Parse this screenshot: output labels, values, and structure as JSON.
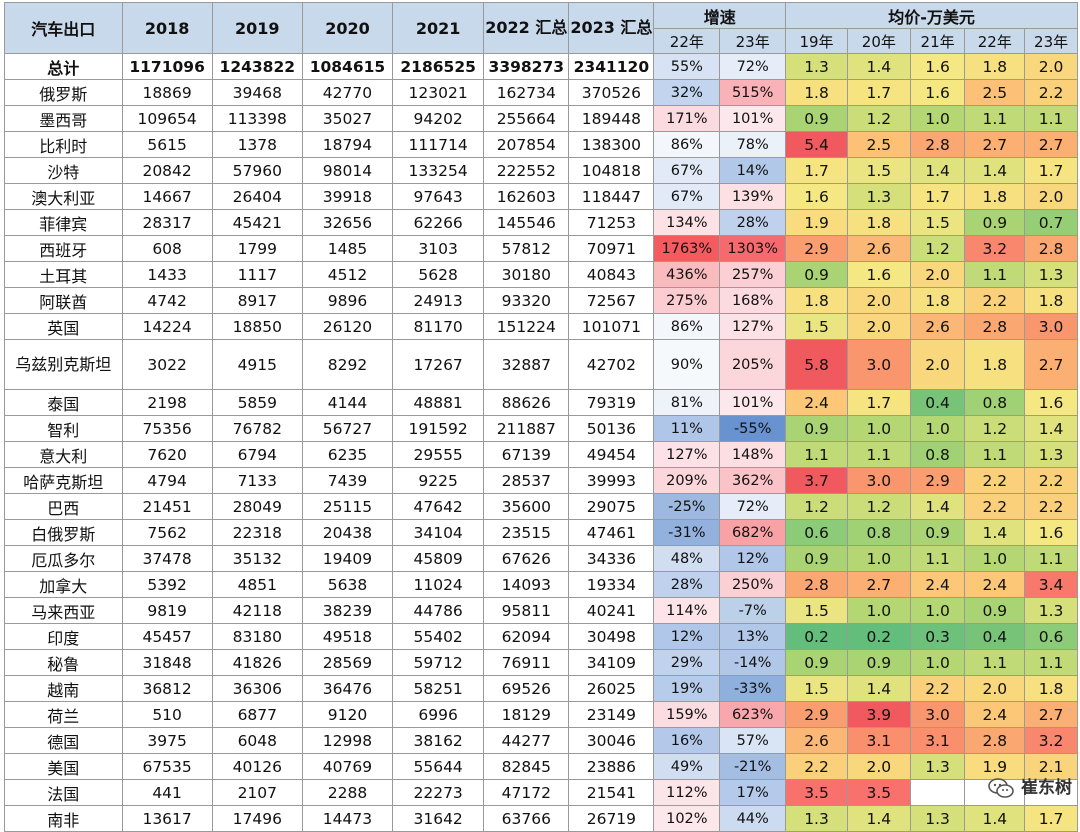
{
  "headers": {
    "country": "汽车出口",
    "years": [
      "2018",
      "2019",
      "2020",
      "2021",
      "2022 汇总",
      "2023 汇总"
    ],
    "growth": "增速",
    "growth_sub": [
      "22年",
      "23年"
    ],
    "price": "均价-万美元",
    "price_sub": [
      "19年",
      "20年",
      "21年",
      "22年",
      "23年"
    ]
  },
  "rows": [
    {
      "name": "总计",
      "vals": [
        "1171096",
        "1243822",
        "1084615",
        "2186525",
        "3398273",
        "2341120"
      ],
      "g": [
        "55%",
        "72%"
      ],
      "p": [
        "1.3",
        "1.4",
        "1.6",
        "1.8",
        "2.0"
      ]
    },
    {
      "name": "俄罗斯",
      "vals": [
        "18869",
        "39468",
        "42770",
        "123021",
        "162734",
        "370526"
      ],
      "g": [
        "32%",
        "515%"
      ],
      "p": [
        "1.8",
        "1.7",
        "1.6",
        "2.5",
        "2.2"
      ]
    },
    {
      "name": "墨西哥",
      "vals": [
        "109654",
        "113398",
        "35027",
        "94202",
        "255664",
        "189448"
      ],
      "g": [
        "171%",
        "101%"
      ],
      "p": [
        "0.9",
        "1.2",
        "1.0",
        "1.1",
        "1.1"
      ]
    },
    {
      "name": "比利时",
      "vals": [
        "5615",
        "1378",
        "18794",
        "111714",
        "207854",
        "138300"
      ],
      "g": [
        "86%",
        "78%"
      ],
      "p": [
        "5.4",
        "2.5",
        "2.8",
        "2.7",
        "2.7"
      ]
    },
    {
      "name": "沙特",
      "vals": [
        "20842",
        "57960",
        "98014",
        "133254",
        "222552",
        "104818"
      ],
      "g": [
        "67%",
        "14%"
      ],
      "p": [
        "1.7",
        "1.5",
        "1.4",
        "1.4",
        "1.7"
      ]
    },
    {
      "name": "澳大利亚",
      "vals": [
        "14667",
        "26404",
        "39918",
        "97643",
        "162603",
        "118447"
      ],
      "g": [
        "67%",
        "139%"
      ],
      "p": [
        "1.6",
        "1.3",
        "1.7",
        "1.8",
        "2.0"
      ]
    },
    {
      "name": "菲律宾",
      "vals": [
        "28317",
        "45421",
        "32656",
        "62266",
        "145546",
        "71253"
      ],
      "g": [
        "134%",
        "28%"
      ],
      "p": [
        "1.9",
        "1.8",
        "1.5",
        "0.9",
        "0.7"
      ]
    },
    {
      "name": "西班牙",
      "vals": [
        "608",
        "1799",
        "1485",
        "3103",
        "57812",
        "70971"
      ],
      "g": [
        "1763%",
        "1303%"
      ],
      "p": [
        "2.9",
        "2.6",
        "1.2",
        "3.2",
        "2.8"
      ]
    },
    {
      "name": "土耳其",
      "vals": [
        "1433",
        "1117",
        "4512",
        "5628",
        "30180",
        "40843"
      ],
      "g": [
        "436%",
        "257%"
      ],
      "p": [
        "0.9",
        "1.6",
        "2.0",
        "1.1",
        "1.3"
      ]
    },
    {
      "name": "阿联酋",
      "vals": [
        "4742",
        "8917",
        "9896",
        "24913",
        "93320",
        "72567"
      ],
      "g": [
        "275%",
        "168%"
      ],
      "p": [
        "1.8",
        "2.0",
        "1.8",
        "2.2",
        "1.8"
      ]
    },
    {
      "name": "英国",
      "vals": [
        "14224",
        "18850",
        "26120",
        "81170",
        "151224",
        "101071"
      ],
      "g": [
        "86%",
        "127%"
      ],
      "p": [
        "1.5",
        "2.0",
        "2.6",
        "2.8",
        "3.0"
      ]
    },
    {
      "name": "乌兹别克斯坦",
      "vals": [
        "3022",
        "4915",
        "8292",
        "17267",
        "32887",
        "42702"
      ],
      "g": [
        "90%",
        "205%"
      ],
      "p": [
        "5.8",
        "3.0",
        "2.0",
        "1.8",
        "2.7"
      ]
    },
    {
      "name": "泰国",
      "vals": [
        "2198",
        "5859",
        "4144",
        "48881",
        "88626",
        "79319"
      ],
      "g": [
        "81%",
        "101%"
      ],
      "p": [
        "2.4",
        "1.7",
        "0.4",
        "0.8",
        "1.6"
      ]
    },
    {
      "name": "智利",
      "vals": [
        "75356",
        "76782",
        "56727",
        "191592",
        "211887",
        "50136"
      ],
      "g": [
        "11%",
        "-55%"
      ],
      "p": [
        "0.9",
        "1.0",
        "1.0",
        "1.2",
        "1.4"
      ]
    },
    {
      "name": "意大利",
      "vals": [
        "7620",
        "6794",
        "6235",
        "29555",
        "67139",
        "49454"
      ],
      "g": [
        "127%",
        "148%"
      ],
      "p": [
        "1.1",
        "1.1",
        "0.8",
        "1.1",
        "1.3"
      ]
    },
    {
      "name": "哈萨克斯坦",
      "vals": [
        "4794",
        "7133",
        "7439",
        "9225",
        "28537",
        "39993"
      ],
      "g": [
        "209%",
        "362%"
      ],
      "p": [
        "3.7",
        "3.0",
        "2.9",
        "2.2",
        "2.2"
      ]
    },
    {
      "name": "巴西",
      "vals": [
        "21451",
        "28049",
        "25115",
        "47642",
        "35600",
        "29075"
      ],
      "g": [
        "-25%",
        "72%"
      ],
      "p": [
        "1.2",
        "1.2",
        "1.4",
        "2.2",
        "2.2"
      ]
    },
    {
      "name": "白俄罗斯",
      "vals": [
        "7562",
        "22318",
        "20438",
        "34104",
        "23515",
        "47461"
      ],
      "g": [
        "-31%",
        "682%"
      ],
      "p": [
        "0.6",
        "0.8",
        "0.9",
        "1.4",
        "1.6"
      ]
    },
    {
      "name": "厄瓜多尔",
      "vals": [
        "37478",
        "35132",
        "19409",
        "45809",
        "67626",
        "34336"
      ],
      "g": [
        "48%",
        "12%"
      ],
      "p": [
        "0.9",
        "1.0",
        "1.1",
        "1.0",
        "1.1"
      ]
    },
    {
      "name": "加拿大",
      "vals": [
        "5392",
        "4851",
        "5638",
        "11024",
        "14093",
        "19334"
      ],
      "g": [
        "28%",
        "250%"
      ],
      "p": [
        "2.8",
        "2.7",
        "2.4",
        "2.4",
        "3.4"
      ]
    },
    {
      "name": "马来西亚",
      "vals": [
        "9819",
        "42118",
        "38239",
        "44786",
        "95811",
        "40241"
      ],
      "g": [
        "114%",
        "-7%"
      ],
      "p": [
        "1.5",
        "1.0",
        "1.0",
        "0.9",
        "1.3"
      ]
    },
    {
      "name": "印度",
      "vals": [
        "45457",
        "83180",
        "49518",
        "55402",
        "62094",
        "30498"
      ],
      "g": [
        "12%",
        "13%"
      ],
      "p": [
        "0.2",
        "0.2",
        "0.3",
        "0.4",
        "0.6"
      ]
    },
    {
      "name": "秘鲁",
      "vals": [
        "31848",
        "41826",
        "28569",
        "59712",
        "76911",
        "34109"
      ],
      "g": [
        "29%",
        "-14%"
      ],
      "p": [
        "0.9",
        "0.9",
        "1.0",
        "1.1",
        "1.1"
      ]
    },
    {
      "name": "越南",
      "vals": [
        "36812",
        "36306",
        "36476",
        "58251",
        "69526",
        "26025"
      ],
      "g": [
        "19%",
        "-33%"
      ],
      "p": [
        "1.5",
        "1.4",
        "2.2",
        "2.0",
        "1.8"
      ]
    },
    {
      "name": "荷兰",
      "vals": [
        "510",
        "6877",
        "9120",
        "6996",
        "18129",
        "23149"
      ],
      "g": [
        "159%",
        "623%"
      ],
      "p": [
        "2.9",
        "3.9",
        "3.0",
        "2.4",
        "2.7"
      ]
    },
    {
      "name": "德国",
      "vals": [
        "3975",
        "6048",
        "12998",
        "38162",
        "44277",
        "30046"
      ],
      "g": [
        "16%",
        "57%"
      ],
      "p": [
        "2.6",
        "3.1",
        "3.1",
        "2.8",
        "3.2"
      ]
    },
    {
      "name": "美国",
      "vals": [
        "67535",
        "40126",
        "40769",
        "55644",
        "82845",
        "23886"
      ],
      "g": [
        "49%",
        "-21%"
      ],
      "p": [
        "2.2",
        "2.0",
        "1.3",
        "1.9",
        "2.1"
      ]
    },
    {
      "name": "法国",
      "vals": [
        "441",
        "2107",
        "2288",
        "22273",
        "47172",
        "21541"
      ],
      "g": [
        "112%",
        "17%"
      ],
      "p": [
        "3.5",
        "3.5",
        "",
        "",
        ""
      ]
    },
    {
      "name": "南非",
      "vals": [
        "13617",
        "17496",
        "14473",
        "31642",
        "63766",
        "26719"
      ],
      "g": [
        "102%",
        "44%"
      ],
      "p": [
        "1.3",
        "1.4",
        "1.3",
        "1.4",
        "1.7"
      ]
    }
  ],
  "watermark": "崔东树"
}
